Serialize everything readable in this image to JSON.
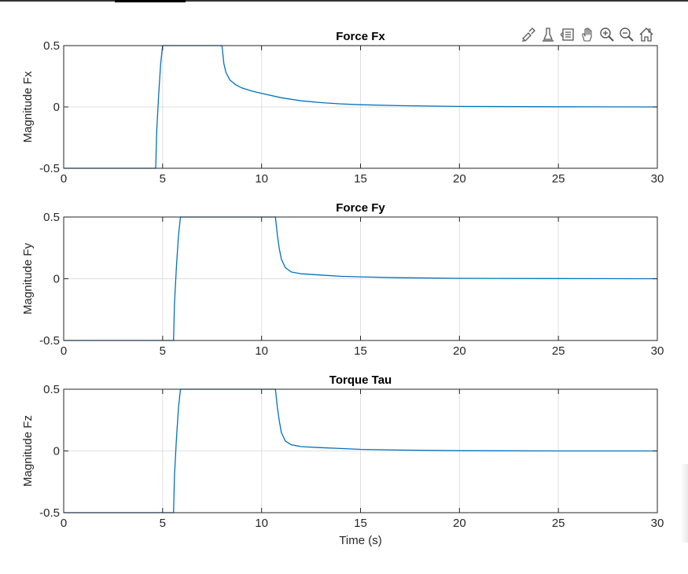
{
  "toolbar": {
    "buttons": [
      {
        "name": "brush-icon"
      },
      {
        "name": "datatip-icon"
      },
      {
        "name": "legend-icon"
      },
      {
        "name": "pan-hand-icon"
      },
      {
        "name": "zoom-in-icon"
      },
      {
        "name": "zoom-out-icon"
      },
      {
        "name": "home-icon"
      }
    ]
  },
  "colors": {
    "line": "#0072BD",
    "grid": "#DFDFDF",
    "axis": "#262626"
  },
  "chart_data": [
    {
      "type": "line",
      "title": "Force Fx",
      "xlabel": "",
      "ylabel": "Magnitude Fx",
      "xlim": [
        0,
        30
      ],
      "ylim": [
        -0.5,
        0.5
      ],
      "xticks": [
        0,
        5,
        10,
        15,
        20,
        25,
        30
      ],
      "yticks": [
        -0.5,
        0,
        0.5
      ],
      "xtick_labels": [
        "0",
        "5",
        "10",
        "15",
        "20",
        "25",
        "30"
      ],
      "ytick_labels": [
        "-0.5",
        "0",
        "0.5"
      ],
      "grid": true,
      "series": [
        {
          "x": [
            0,
            4.65,
            4.7,
            4.8,
            4.9,
            5.0,
            8.0,
            8.1,
            8.2,
            8.4,
            8.7,
            9.0,
            9.5,
            10.0,
            11.0,
            12.0,
            13.0,
            14.0,
            15.0,
            17.0,
            20.0,
            25.0,
            30.0
          ],
          "y": [
            -0.5,
            -0.5,
            -0.2,
            0.1,
            0.35,
            0.5,
            0.5,
            0.35,
            0.28,
            0.22,
            0.18,
            0.155,
            0.13,
            0.11,
            0.075,
            0.05,
            0.035,
            0.025,
            0.018,
            0.01,
            0.004,
            0.001,
            0.0
          ]
        }
      ]
    },
    {
      "type": "line",
      "title": "Force Fy",
      "xlabel": "",
      "ylabel": "Magnitude Fy",
      "xlim": [
        0,
        30
      ],
      "ylim": [
        -0.5,
        0.5
      ],
      "xticks": [
        0,
        5,
        10,
        15,
        20,
        25,
        30
      ],
      "yticks": [
        -0.5,
        0,
        0.5
      ],
      "xtick_labels": [
        "0",
        "5",
        "10",
        "15",
        "20",
        "25",
        "30"
      ],
      "ytick_labels": [
        "-0.5",
        "0",
        "0.5"
      ],
      "grid": true,
      "series": [
        {
          "x": [
            0,
            5.55,
            5.6,
            5.7,
            5.8,
            5.9,
            10.7,
            10.8,
            10.9,
            11.0,
            11.2,
            11.5,
            12.0,
            13.0,
            14.0,
            15.0,
            17.0,
            20.0,
            25.0,
            30.0
          ],
          "y": [
            -0.5,
            -0.5,
            -0.2,
            0.1,
            0.35,
            0.5,
            0.5,
            0.35,
            0.24,
            0.16,
            0.09,
            0.055,
            0.04,
            0.03,
            0.02,
            0.015,
            0.008,
            0.003,
            0.001,
            0.0
          ]
        }
      ]
    },
    {
      "type": "line",
      "title": "Torque Tau",
      "xlabel": "Time (s)",
      "ylabel": "Magnitude Fz",
      "xlim": [
        0,
        30
      ],
      "ylim": [
        -0.5,
        0.5
      ],
      "xticks": [
        0,
        5,
        10,
        15,
        20,
        25,
        30
      ],
      "yticks": [
        -0.5,
        0,
        0.5
      ],
      "xtick_labels": [
        "0",
        "5",
        "10",
        "15",
        "20",
        "25",
        "30"
      ],
      "ytick_labels": [
        "-0.5",
        "0",
        "0.5"
      ],
      "grid": true,
      "series": [
        {
          "x": [
            0,
            5.55,
            5.6,
            5.7,
            5.8,
            5.9,
            10.7,
            10.8,
            10.9,
            11.0,
            11.2,
            11.5,
            12.0,
            13.0,
            14.0,
            15.0,
            17.0,
            20.0,
            25.0,
            30.0
          ],
          "y": [
            -0.5,
            -0.5,
            -0.2,
            0.1,
            0.35,
            0.5,
            0.5,
            0.35,
            0.24,
            0.15,
            0.08,
            0.05,
            0.035,
            0.027,
            0.02,
            0.013,
            0.007,
            0.002,
            0.0,
            0.0
          ]
        }
      ]
    }
  ]
}
